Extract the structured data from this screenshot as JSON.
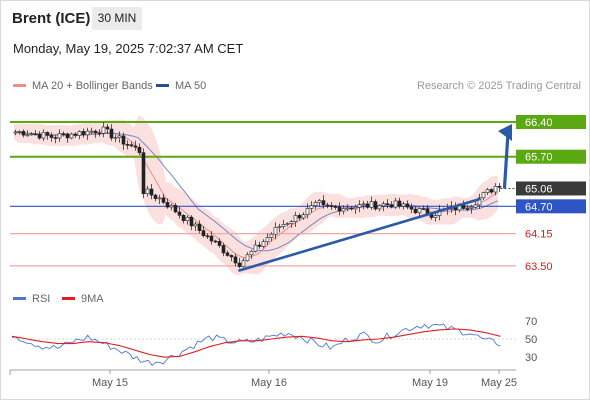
{
  "header": {
    "instrument": "Brent (ICE)",
    "interval": "30 MIN",
    "datetime": "Monday, May 19, 2025 7:02:37 AM CET",
    "research": "Research © 2025 Trading Central"
  },
  "legend": {
    "ma20_label": "MA 20 + Bollinger Bands",
    "ma50_label": "MA 50",
    "rsi_label": "RSI",
    "ma9_label": "9MA"
  },
  "colors": {
    "green_level": "#5aa812",
    "blue_level": "#2f55c4",
    "red_level": "#f4a6a6",
    "bollinger": "#f7c7c7",
    "ma20": "#e88f8f",
    "ma50": "#7a84c4",
    "trend_arrow": "#2a5aa8",
    "rsi": "#4a77d6",
    "ma9": "#e02020",
    "current_price_bg": "#3a3a3a"
  },
  "chart_data": [
    {
      "type": "candlestick",
      "title": "",
      "x_labels": [
        "May 15",
        "May 16",
        "May 19",
        "May 25"
      ],
      "ylim": [
        63.3,
        66.6
      ],
      "current_price": 65.06,
      "levels": [
        {
          "value": 66.4,
          "label": "66.40",
          "kind": "resistance"
        },
        {
          "value": 65.7,
          "label": "65.70",
          "kind": "resistance"
        },
        {
          "value": 64.7,
          "label": "64.70",
          "kind": "pivot"
        },
        {
          "value": 64.15,
          "label": "64.15",
          "kind": "support"
        },
        {
          "value": 63.5,
          "label": "63.50",
          "kind": "support"
        }
      ],
      "close_path": [
        {
          "x": "May 14 07:00",
          "y": 66.2
        },
        {
          "x": "May 14 10:00",
          "y": 66.1
        },
        {
          "x": "May 14 15:00",
          "y": 66.25
        },
        {
          "x": "May 14 19:00",
          "y": 65.8
        },
        {
          "x": "May 15 00:00",
          "y": 65.3
        },
        {
          "x": "May 15 05:00",
          "y": 64.85
        },
        {
          "x": "May 15 09:00",
          "y": 64.2
        },
        {
          "x": "May 15 13:00",
          "y": 63.55
        },
        {
          "x": "May 15 17:00",
          "y": 64.3
        },
        {
          "x": "May 15 21:00",
          "y": 64.75
        },
        {
          "x": "May 16 02:00",
          "y": 64.65
        },
        {
          "x": "May 16 07:00",
          "y": 64.68
        },
        {
          "x": "May 16 12:00",
          "y": 64.75
        },
        {
          "x": "May 16 16:00",
          "y": 64.55
        },
        {
          "x": "May 16 20:00",
          "y": 64.75
        },
        {
          "x": "May 16 23:00",
          "y": 65.2
        },
        {
          "x": "May 19 01:00",
          "y": 65.45
        },
        {
          "x": "May 19 03:00",
          "y": 65.3
        },
        {
          "x": "May 19 05:00",
          "y": 65.5
        },
        {
          "x": "May 19 07:00",
          "y": 65.06
        }
      ],
      "trendline": {
        "from": {
          "x": "May 15 13:00",
          "y": 63.4
        },
        "to": {
          "x": "May 19 05:00",
          "y": 64.85
        }
      },
      "projection": {
        "from": 65.06,
        "to": 66.4
      }
    },
    {
      "type": "line",
      "title": "RSI",
      "yticks": [
        70,
        50,
        30
      ],
      "series": [
        {
          "name": "RSI",
          "values": [
            55,
            48,
            42,
            40,
            47,
            52,
            45,
            38,
            30,
            24,
            27,
            35,
            44,
            52,
            48,
            46,
            48,
            53,
            57,
            52,
            45,
            40,
            50,
            55,
            48,
            56,
            62,
            66,
            64,
            60,
            57,
            48,
            45
          ]
        },
        {
          "name": "9MA",
          "values": [
            53,
            50,
            47,
            45,
            45,
            47,
            46,
            43,
            38,
            33,
            30,
            31,
            36,
            42,
            46,
            48,
            48,
            50,
            52,
            53,
            51,
            48,
            47,
            49,
            50,
            52,
            55,
            58,
            60,
            61,
            60,
            57,
            53
          ]
        }
      ]
    }
  ]
}
